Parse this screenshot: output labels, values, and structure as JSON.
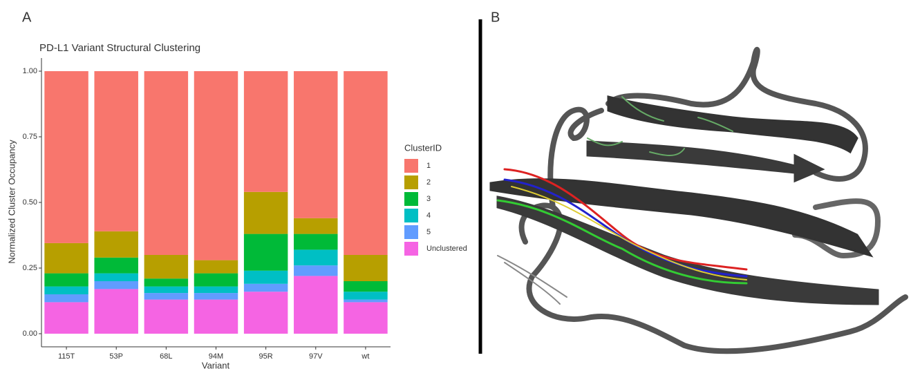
{
  "panel_labels": {
    "a": "A",
    "b": "B"
  },
  "chart_data": {
    "type": "stacked_bar",
    "title": "PD-L1 Variant Structural Clustering",
    "x_label": "Variant",
    "y_label": "Normalized Cluster Occupancy",
    "legend_title": "ClusterID",
    "legend_position": "right",
    "categories": [
      "115T",
      "53P",
      "68L",
      "94M",
      "95R",
      "97V",
      "wt"
    ],
    "series": [
      {
        "name": "1",
        "color": "#F8766D",
        "values": [
          0.655,
          0.61,
          0.7,
          0.72,
          0.46,
          0.56,
          0.7
        ]
      },
      {
        "name": "2",
        "color": "#B79F00",
        "values": [
          0.115,
          0.1,
          0.09,
          0.05,
          0.16,
          0.06,
          0.1
        ]
      },
      {
        "name": "3",
        "color": "#00BA38",
        "values": [
          0.05,
          0.06,
          0.03,
          0.05,
          0.14,
          0.06,
          0.04
        ]
      },
      {
        "name": "4",
        "color": "#00BFC4",
        "values": [
          0.03,
          0.03,
          0.025,
          0.025,
          0.05,
          0.06,
          0.03
        ]
      },
      {
        "name": "5",
        "color": "#619CFF",
        "values": [
          0.03,
          0.03,
          0.025,
          0.025,
          0.03,
          0.04,
          0.01
        ]
      },
      {
        "name": "Unclustered",
        "color": "#F564E3",
        "values": [
          0.12,
          0.17,
          0.13,
          0.13,
          0.16,
          0.22,
          0.12
        ]
      }
    ],
    "ylim": [
      -0.05,
      1.05
    ],
    "yticks": [
      {
        "value": 0,
        "label": "0.00"
      },
      {
        "value": 0.25,
        "label": "0.25"
      },
      {
        "value": 0.5,
        "label": "0.50"
      },
      {
        "value": 0.75,
        "label": "0.75"
      },
      {
        "value": 1,
        "label": "1.00"
      }
    ],
    "grid": false
  }
}
